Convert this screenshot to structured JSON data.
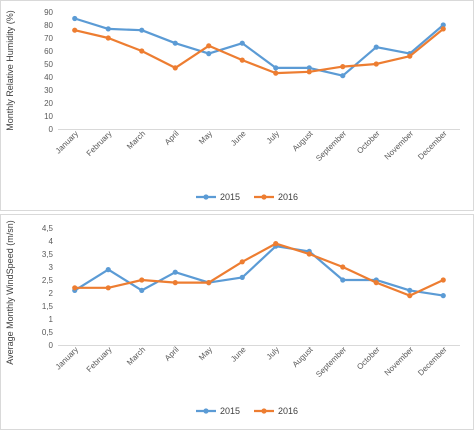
{
  "chart_data": [
    {
      "type": "line",
      "ylabel": "Monthly Relative Humidity (%)",
      "xlabel": "",
      "ylim": [
        0,
        90
      ],
      "y_step": 10,
      "y_tick_labels": [
        "0",
        "10",
        "20",
        "30",
        "40",
        "50",
        "60",
        "70",
        "80",
        "90"
      ],
      "categories": [
        "January",
        "February",
        "March",
        "April",
        "May",
        "June",
        "July",
        "August",
        "September",
        "October",
        "November",
        "December"
      ],
      "series": [
        {
          "name": "2015",
          "color": "#5b9bd5",
          "values": [
            85,
            77,
            76,
            66,
            58,
            66,
            47,
            47,
            41,
            63,
            58,
            80
          ]
        },
        {
          "name": "2016",
          "color": "#ed7d31",
          "values": [
            76,
            70,
            60,
            47,
            64,
            53,
            43,
            44,
            48,
            50,
            56,
            77
          ]
        }
      ],
      "grid": false,
      "legend": "bottom"
    },
    {
      "type": "line",
      "ylabel": "Average Monthly WindSpeed (m/sn)",
      "xlabel": "",
      "ylim": [
        0,
        4.5
      ],
      "y_step": 0.5,
      "y_tick_labels": [
        "0",
        "0,5",
        "1",
        "1,5",
        "2",
        "2,5",
        "3",
        "3,5",
        "4",
        "4,5"
      ],
      "categories": [
        "January",
        "February",
        "March",
        "April",
        "May",
        "June",
        "July",
        "August",
        "September",
        "October",
        "November",
        "December"
      ],
      "series": [
        {
          "name": "2015",
          "color": "#5b9bd5",
          "values": [
            2.1,
            2.9,
            2.1,
            2.8,
            2.4,
            2.6,
            3.8,
            3.6,
            2.5,
            2.5,
            2.1,
            1.9
          ]
        },
        {
          "name": "2016",
          "color": "#ed7d31",
          "values": [
            2.2,
            2.2,
            2.5,
            2.4,
            2.4,
            3.2,
            3.9,
            3.5,
            3.0,
            2.4,
            1.9,
            2.5
          ]
        }
      ],
      "grid": false,
      "legend": "bottom"
    }
  ]
}
